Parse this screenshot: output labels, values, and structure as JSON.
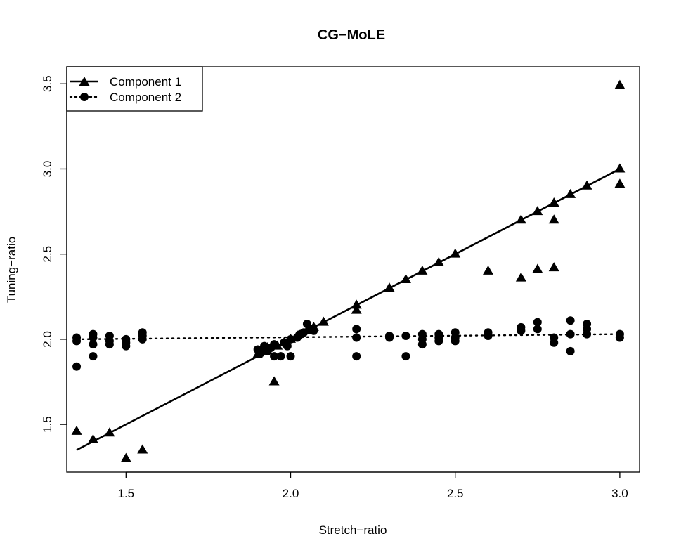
{
  "chart_data": {
    "type": "scatter",
    "title": "CG−MoLE",
    "xlabel": "Stretch−ratio",
    "ylabel": "Tuning−ratio",
    "xlim": [
      1.32,
      3.06
    ],
    "ylim": [
      1.22,
      3.6
    ],
    "x_ticks": [
      {
        "value": 1.5,
        "label": "1.5"
      },
      {
        "value": 2.0,
        "label": "2.0"
      },
      {
        "value": 2.5,
        "label": "2.5"
      },
      {
        "value": 3.0,
        "label": "3.0"
      }
    ],
    "y_ticks": [
      {
        "value": 1.5,
        "label": "1.5"
      },
      {
        "value": 2.0,
        "label": "2.0"
      },
      {
        "value": 2.5,
        "label": "2.5"
      },
      {
        "value": 3.0,
        "label": "3.0"
      },
      {
        "value": 3.5,
        "label": "3.5"
      }
    ],
    "grid": false,
    "legend_position": "top-left",
    "series": [
      {
        "name": "Component 1",
        "marker": "triangle",
        "line_style": "solid",
        "line": [
          [
            1.35,
            1.35
          ],
          [
            3.0,
            3.0
          ]
        ],
        "points": [
          [
            1.35,
            1.46
          ],
          [
            1.4,
            1.41
          ],
          [
            1.45,
            1.45
          ],
          [
            1.5,
            1.3
          ],
          [
            1.55,
            1.35
          ],
          [
            1.9,
            1.91
          ],
          [
            1.92,
            1.93
          ],
          [
            1.93,
            1.95
          ],
          [
            1.95,
            1.75
          ],
          [
            1.96,
            1.96
          ],
          [
            1.98,
            1.98
          ],
          [
            2.0,
            2.0
          ],
          [
            2.02,
            2.02
          ],
          [
            2.05,
            2.05
          ],
          [
            2.07,
            2.07
          ],
          [
            2.1,
            2.1
          ],
          [
            2.2,
            2.2
          ],
          [
            2.2,
            2.17
          ],
          [
            2.3,
            2.3
          ],
          [
            2.35,
            2.35
          ],
          [
            2.4,
            2.4
          ],
          [
            2.45,
            2.45
          ],
          [
            2.5,
            2.5
          ],
          [
            2.6,
            2.4
          ],
          [
            2.7,
            2.7
          ],
          [
            2.7,
            2.36
          ],
          [
            2.75,
            2.75
          ],
          [
            2.75,
            2.41
          ],
          [
            2.8,
            2.8
          ],
          [
            2.8,
            2.7
          ],
          [
            2.8,
            2.42
          ],
          [
            2.85,
            2.85
          ],
          [
            2.9,
            2.9
          ],
          [
            3.0,
            3.0
          ],
          [
            3.0,
            2.91
          ],
          [
            3.0,
            3.49
          ]
        ]
      },
      {
        "name": "Component 2",
        "marker": "circle",
        "line_style": "dotted",
        "line": [
          [
            1.35,
            2.0
          ],
          [
            3.0,
            2.03
          ]
        ],
        "points": [
          [
            1.35,
            2.01
          ],
          [
            1.35,
            1.99
          ],
          [
            1.35,
            1.84
          ],
          [
            1.4,
            2.03
          ],
          [
            1.4,
            2.01
          ],
          [
            1.4,
            1.97
          ],
          [
            1.4,
            1.9
          ],
          [
            1.45,
            2.02
          ],
          [
            1.45,
            1.99
          ],
          [
            1.45,
            1.97
          ],
          [
            1.5,
            2.0
          ],
          [
            1.5,
            1.98
          ],
          [
            1.5,
            1.96
          ],
          [
            1.55,
            2.04
          ],
          [
            1.55,
            2.02
          ],
          [
            1.55,
            2.0
          ],
          [
            1.9,
            1.94
          ],
          [
            1.91,
            1.92
          ],
          [
            1.92,
            1.96
          ],
          [
            1.93,
            1.93
          ],
          [
            1.94,
            1.95
          ],
          [
            1.95,
            1.97
          ],
          [
            1.95,
            1.9
          ],
          [
            1.97,
            1.9
          ],
          [
            1.98,
            1.98
          ],
          [
            1.99,
            1.96
          ],
          [
            2.0,
            2.0
          ],
          [
            2.0,
            1.9
          ],
          [
            2.02,
            2.01
          ],
          [
            2.03,
            2.03
          ],
          [
            2.04,
            2.04
          ],
          [
            2.05,
            2.09
          ],
          [
            2.06,
            2.06
          ],
          [
            2.07,
            2.05
          ],
          [
            2.2,
            2.06
          ],
          [
            2.2,
            2.01
          ],
          [
            2.2,
            1.9
          ],
          [
            2.3,
            2.02
          ],
          [
            2.3,
            2.01
          ],
          [
            2.35,
            2.02
          ],
          [
            2.35,
            1.9
          ],
          [
            2.4,
            2.03
          ],
          [
            2.4,
            2.0
          ],
          [
            2.4,
            1.97
          ],
          [
            2.45,
            2.03
          ],
          [
            2.45,
            2.01
          ],
          [
            2.45,
            1.99
          ],
          [
            2.5,
            2.04
          ],
          [
            2.5,
            2.01
          ],
          [
            2.5,
            1.99
          ],
          [
            2.6,
            2.04
          ],
          [
            2.6,
            2.02
          ],
          [
            2.7,
            2.07
          ],
          [
            2.7,
            2.05
          ],
          [
            2.75,
            2.1
          ],
          [
            2.75,
            2.06
          ],
          [
            2.8,
            2.01
          ],
          [
            2.8,
            1.98
          ],
          [
            2.85,
            2.11
          ],
          [
            2.85,
            2.03
          ],
          [
            2.85,
            1.93
          ],
          [
            2.9,
            2.09
          ],
          [
            2.9,
            2.06
          ],
          [
            2.9,
            2.03
          ],
          [
            3.0,
            2.03
          ],
          [
            3.0,
            2.01
          ]
        ]
      }
    ]
  }
}
